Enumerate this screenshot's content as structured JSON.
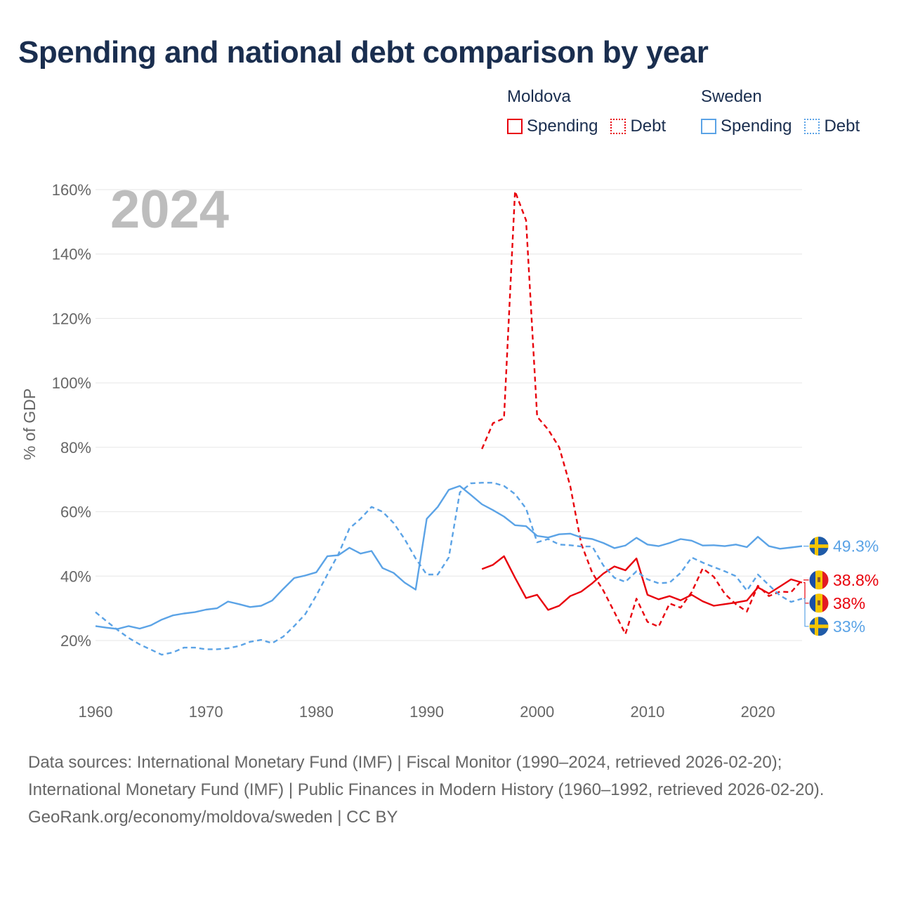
{
  "title": "Spending and national debt comparison by year",
  "legend": {
    "groups": [
      {
        "name": "Moldova",
        "color": "#e8000b",
        "spending_label": "Spending",
        "debt_label": "Debt"
      },
      {
        "name": "Sweden",
        "color": "#5ba3e6",
        "spending_label": "Spending",
        "debt_label": "Debt"
      }
    ]
  },
  "footer": {
    "sources": "Data sources: International Monetary Fund (IMF) | Fiscal Monitor (1990–2024, retrieved 2026-02-20); International Monetary Fund (IMF) | Public Finances in Modern History (1960–1992, retrieved 2026-02-20).",
    "credit": "GeoRank.org/economy/moldova/sweden | CC BY"
  },
  "chart_data": {
    "type": "line",
    "title": "Spending and national debt comparison by year",
    "year_watermark": "2024",
    "ylabel": "% of GDP",
    "xlabel": "",
    "xlim": [
      1960,
      2024
    ],
    "ylim": [
      5,
      165
    ],
    "x_ticks": [
      1960,
      1970,
      1980,
      1990,
      2000,
      2010,
      2020
    ],
    "y_ticks": [
      20,
      40,
      60,
      80,
      100,
      120,
      140,
      160
    ],
    "y_tick_labels": [
      "20%",
      "40%",
      "60%",
      "80%",
      "100%",
      "120%",
      "140%",
      "160%"
    ],
    "grid": true,
    "legend_position": "top-right",
    "series": [
      {
        "name": "Moldova Spending",
        "country": "Moldova",
        "measure": "Spending",
        "color": "#e8000b",
        "style": "solid",
        "x": [
          1995,
          1996,
          1997,
          1998,
          1999,
          2000,
          2001,
          2002,
          2003,
          2004,
          2005,
          2006,
          2007,
          2008,
          2009,
          2010,
          2011,
          2012,
          2013,
          2014,
          2015,
          2016,
          2017,
          2018,
          2019,
          2020,
          2021,
          2022,
          2023,
          2024
        ],
        "y": [
          42.2,
          43.5,
          46.2,
          39.5,
          33.2,
          34.2,
          29.5,
          30.8,
          33.8,
          35.2,
          37.8,
          40.8,
          43.0,
          41.8,
          45.5,
          34.2,
          32.8,
          33.8,
          32.5,
          34.2,
          32.2,
          30.8,
          31.3,
          31.8,
          32.4,
          36.5,
          34.6,
          36.8,
          39.0,
          38.0
        ],
        "end_label": "38%"
      },
      {
        "name": "Moldova Debt",
        "country": "Moldova",
        "measure": "Debt",
        "color": "#e8000b",
        "style": "dashed",
        "x": [
          1995,
          1996,
          1997,
          1998,
          1999,
          2000,
          2001,
          2002,
          2003,
          2004,
          2005,
          2006,
          2007,
          2008,
          2009,
          2010,
          2011,
          2012,
          2013,
          2014,
          2015,
          2016,
          2017,
          2018,
          2019,
          2020,
          2021,
          2022,
          2023,
          2024
        ],
        "y": [
          79.5,
          87.5,
          89.0,
          159.5,
          150.5,
          89.5,
          85.5,
          80.0,
          68.0,
          50.0,
          41.0,
          35.5,
          28.8,
          22.0,
          33.0,
          25.8,
          24.3,
          31.5,
          30.2,
          35.0,
          42.4,
          39.8,
          34.5,
          31.3,
          29.0,
          37.0,
          33.8,
          35.2,
          35.0,
          38.8
        ],
        "end_label": "38.8%"
      },
      {
        "name": "Sweden Spending",
        "country": "Sweden",
        "measure": "Spending",
        "color": "#5ba3e6",
        "style": "solid",
        "x": [
          1960,
          1961,
          1962,
          1963,
          1964,
          1965,
          1966,
          1967,
          1968,
          1969,
          1970,
          1971,
          1972,
          1973,
          1974,
          1975,
          1976,
          1977,
          1978,
          1979,
          1980,
          1981,
          1982,
          1983,
          1984,
          1985,
          1986,
          1987,
          1988,
          1989,
          1990,
          1991,
          1992,
          1993,
          1994,
          1995,
          1996,
          1997,
          1998,
          1999,
          2000,
          2001,
          2002,
          2003,
          2004,
          2005,
          2006,
          2007,
          2008,
          2009,
          2010,
          2011,
          2012,
          2013,
          2014,
          2015,
          2016,
          2017,
          2018,
          2019,
          2020,
          2021,
          2022,
          2023,
          2024
        ],
        "y": [
          24.5,
          24.0,
          23.6,
          24.5,
          23.7,
          24.7,
          26.5,
          27.8,
          28.4,
          28.8,
          29.6,
          30.0,
          32.1,
          31.3,
          30.4,
          30.8,
          32.4,
          36.0,
          39.4,
          40.2,
          41.2,
          46.2,
          46.5,
          48.8,
          47.0,
          47.8,
          42.5,
          41.0,
          38.0,
          35.8,
          57.8,
          61.5,
          66.8,
          68.0,
          65.2,
          62.3,
          60.5,
          58.5,
          55.8,
          55.5,
          52.5,
          52.0,
          53.0,
          53.2,
          52.0,
          51.5,
          50.3,
          48.7,
          49.5,
          51.9,
          49.8,
          49.3,
          50.3,
          51.5,
          51.0,
          49.5,
          49.6,
          49.3,
          49.8,
          49.0,
          52.2,
          49.3,
          48.5,
          48.9,
          49.3
        ],
        "end_label": "49.3%"
      },
      {
        "name": "Sweden Debt",
        "country": "Sweden",
        "measure": "Debt",
        "color": "#5ba3e6",
        "style": "dashed",
        "x": [
          1960,
          1961,
          1962,
          1963,
          1964,
          1965,
          1966,
          1967,
          1968,
          1969,
          1970,
          1971,
          1972,
          1973,
          1974,
          1975,
          1976,
          1977,
          1978,
          1979,
          1980,
          1981,
          1982,
          1983,
          1984,
          1985,
          1986,
          1987,
          1988,
          1989,
          1990,
          1991,
          1992,
          1993,
          1994,
          1995,
          1996,
          1997,
          1998,
          1999,
          2000,
          2001,
          2002,
          2003,
          2004,
          2005,
          2006,
          2007,
          2008,
          2009,
          2010,
          2011,
          2012,
          2013,
          2014,
          2015,
          2016,
          2017,
          2018,
          2019,
          2020,
          2021,
          2022,
          2023,
          2024
        ],
        "y": [
          28.8,
          26.0,
          23.3,
          20.8,
          18.8,
          17.2,
          15.6,
          16.3,
          17.8,
          17.8,
          17.3,
          17.3,
          17.6,
          18.3,
          19.6,
          20.2,
          19.2,
          21.2,
          24.5,
          28.2,
          34.0,
          40.5,
          46.8,
          54.8,
          57.8,
          61.5,
          60.0,
          56.5,
          51.5,
          45.5,
          40.5,
          40.5,
          45.8,
          66.0,
          68.8,
          69.0,
          69.0,
          68.0,
          65.5,
          61.0,
          50.5,
          51.5,
          49.8,
          49.6,
          49.2,
          49.2,
          43.3,
          39.5,
          38.2,
          41.5,
          39.0,
          37.8,
          38.0,
          41.0,
          45.8,
          44.2,
          42.8,
          41.5,
          40.0,
          35.5,
          40.5,
          37.2,
          34.0,
          32.0,
          33.0
        ],
        "end_label": "33%"
      }
    ]
  }
}
